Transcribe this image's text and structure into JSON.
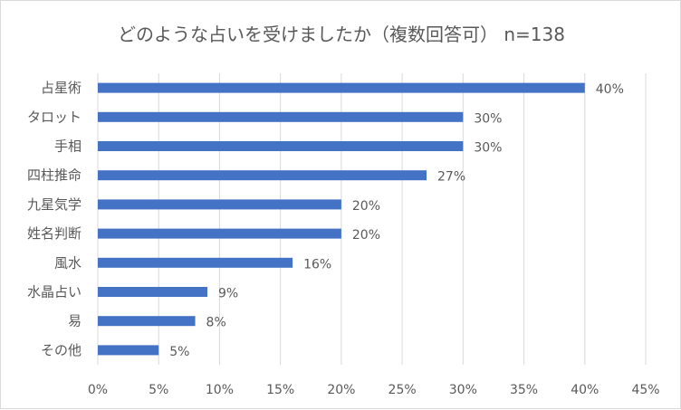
{
  "chart_data": {
    "type": "bar",
    "orientation": "horizontal",
    "title": "どのような占いを受けましたか（複数回答可） n=138",
    "categories": [
      "占星術",
      "タロット",
      "手相",
      "四柱推命",
      "九星気学",
      "姓名判断",
      "風水",
      "水晶占い",
      "易",
      "その他"
    ],
    "values": [
      40,
      30,
      30,
      27,
      20,
      20,
      16,
      9,
      8,
      5
    ],
    "value_labels": [
      "40%",
      "30%",
      "30%",
      "27%",
      "20%",
      "20%",
      "16%",
      "9%",
      "8%",
      "5%"
    ],
    "xlim": [
      0,
      45
    ],
    "xticks": [
      "0%",
      "5%",
      "10%",
      "15%",
      "20%",
      "25%",
      "30%",
      "35%",
      "40%",
      "45%"
    ],
    "grid": "vertical",
    "legend": "none",
    "colors": {
      "bar": "#4472c4",
      "grid": "#d9d9d9",
      "text": "#595959"
    }
  }
}
